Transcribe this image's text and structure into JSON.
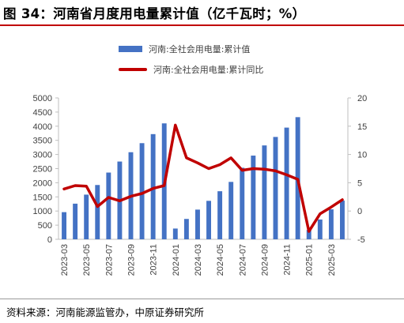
{
  "figure": {
    "title": "图 34：河南省月度用电量累计值（亿千瓦时；%）",
    "source": "资料来源：河南能源监管办，中原证券研究所"
  },
  "chart_data": {
    "type": "bar",
    "categories": [
      "2023-03",
      "2023-04",
      "2023-05",
      "2023-06",
      "2023-07",
      "2023-08",
      "2023-09",
      "2023-10",
      "2023-11",
      "2023-12",
      "2024-01",
      "2024-02",
      "2024-03",
      "2024-04",
      "2024-05",
      "2024-06",
      "2024-07",
      "2024-08",
      "2024-09",
      "2024-10",
      "2024-11",
      "2024-12",
      "2025-01",
      "2025-02",
      "2025-03",
      "2025-04"
    ],
    "x_tick_labels": [
      "2023-03",
      "2023-05",
      "2023-07",
      "2023-09",
      "2023-11",
      "2024-01",
      "2024-03",
      "2024-05",
      "2024-07",
      "2024-09",
      "2024-11",
      "2025-01",
      "2025-03"
    ],
    "series": [
      {
        "name": "河南:全社会用电量:累计值",
        "type": "bar",
        "axis": "left",
        "color": "#4472c4",
        "values": [
          960,
          1260,
          1580,
          1920,
          2360,
          2750,
          3080,
          3400,
          3720,
          4100,
          380,
          720,
          1050,
          1360,
          1700,
          2030,
          2530,
          2960,
          3320,
          3620,
          3950,
          4320,
          330,
          700,
          1060,
          1370
        ]
      },
      {
        "name": "河南:全社会用电量:累计同比",
        "type": "line",
        "axis": "right",
        "color": "#c00000",
        "values": [
          3.9,
          4.5,
          4.4,
          0.8,
          2.4,
          1.8,
          2.6,
          3.1,
          4.0,
          4.5,
          15.2,
          9.4,
          8.5,
          7.5,
          8.2,
          9.4,
          7.2,
          7.5,
          7.4,
          7.1,
          6.4,
          5.6,
          -3.6,
          -0.5,
          0.7,
          2.0
        ]
      }
    ],
    "y_left": {
      "min": 0,
      "max": 5000,
      "ticks": [
        0,
        500,
        1000,
        1500,
        2000,
        2500,
        3000,
        3500,
        4000,
        4500,
        5000
      ]
    },
    "y_right": {
      "min": -5,
      "max": 20,
      "ticks": [
        -5,
        0,
        5,
        10,
        15,
        20
      ]
    },
    "legend_position": "top",
    "grid": false
  }
}
